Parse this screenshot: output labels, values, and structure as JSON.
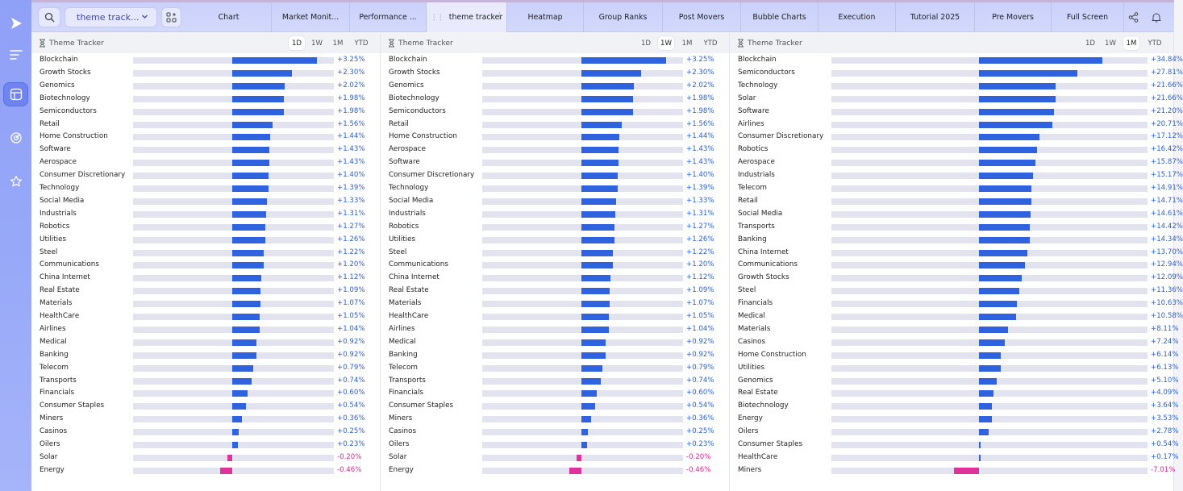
{
  "colors": {
    "positive": "#2f62df",
    "negative": "#e0329a",
    "positive_text": "#2b5fd9",
    "negative_text": "#d9288c"
  },
  "rail": {
    "items": [
      {
        "name": "logo-play-icon"
      },
      {
        "name": "menu-lines-icon"
      },
      {
        "name": "layout-panels-icon",
        "active": true
      },
      {
        "name": "target-icon"
      },
      {
        "name": "star-icon"
      }
    ]
  },
  "toolbar": {
    "select_value": "theme track...",
    "tabs": [
      "Chart",
      "Market Monit...",
      "Performance ...",
      "theme tracker",
      "Heatmap",
      "Group Ranks",
      "Post Movers",
      "Bubble Charts",
      "Execution",
      "Tutorial 2025",
      "Pre Movers",
      "Full Screen"
    ],
    "active_tab": 3
  },
  "panels": [
    {
      "title": "Theme Tracker",
      "ranges": [
        "1D",
        "1W",
        "1M",
        "YTD"
      ],
      "active_range": 0,
      "rows": [
        {
          "name": "Blockchain",
          "value": 3.25,
          "label": "+3.25%"
        },
        {
          "name": "Growth Stocks",
          "value": 2.3,
          "label": "+2.30%"
        },
        {
          "name": "Genomics",
          "value": 2.02,
          "label": "+2.02%"
        },
        {
          "name": "Biotechnology",
          "value": 1.98,
          "label": "+1.98%"
        },
        {
          "name": "Semiconductors",
          "value": 1.98,
          "label": "+1.98%"
        },
        {
          "name": "Retail",
          "value": 1.56,
          "label": "+1.56%"
        },
        {
          "name": "Home Construction",
          "value": 1.44,
          "label": "+1.44%"
        },
        {
          "name": "Software",
          "value": 1.43,
          "label": "+1.43%"
        },
        {
          "name": "Aerospace",
          "value": 1.43,
          "label": "+1.43%"
        },
        {
          "name": "Consumer Discretionary",
          "value": 1.4,
          "label": "+1.40%"
        },
        {
          "name": "Technology",
          "value": 1.39,
          "label": "+1.39%"
        },
        {
          "name": "Social Media",
          "value": 1.33,
          "label": "+1.33%"
        },
        {
          "name": "Industrials",
          "value": 1.31,
          "label": "+1.31%"
        },
        {
          "name": "Robotics",
          "value": 1.27,
          "label": "+1.27%"
        },
        {
          "name": "Utilities",
          "value": 1.26,
          "label": "+1.26%"
        },
        {
          "name": "Steel",
          "value": 1.22,
          "label": "+1.22%"
        },
        {
          "name": "Communications",
          "value": 1.2,
          "label": "+1.20%"
        },
        {
          "name": "China Internet",
          "value": 1.12,
          "label": "+1.12%"
        },
        {
          "name": "Real Estate",
          "value": 1.09,
          "label": "+1.09%"
        },
        {
          "name": "Materials",
          "value": 1.07,
          "label": "+1.07%"
        },
        {
          "name": "HealthCare",
          "value": 1.05,
          "label": "+1.05%"
        },
        {
          "name": "Airlines",
          "value": 1.04,
          "label": "+1.04%"
        },
        {
          "name": "Medical",
          "value": 0.92,
          "label": "+0.92%"
        },
        {
          "name": "Banking",
          "value": 0.92,
          "label": "+0.92%"
        },
        {
          "name": "Telecom",
          "value": 0.79,
          "label": "+0.79%"
        },
        {
          "name": "Transports",
          "value": 0.74,
          "label": "+0.74%"
        },
        {
          "name": "Financials",
          "value": 0.6,
          "label": "+0.60%"
        },
        {
          "name": "Consumer Staples",
          "value": 0.54,
          "label": "+0.54%"
        },
        {
          "name": "Miners",
          "value": 0.36,
          "label": "+0.36%"
        },
        {
          "name": "Casinos",
          "value": 0.25,
          "label": "+0.25%"
        },
        {
          "name": "Oilers",
          "value": 0.23,
          "label": "+0.23%"
        },
        {
          "name": "Solar",
          "value": -0.2,
          "label": "-0.20%"
        },
        {
          "name": "Energy",
          "value": -0.46,
          "label": "-0.46%"
        }
      ]
    },
    {
      "title": "Theme Tracker",
      "ranges": [
        "1D",
        "1W",
        "1M",
        "YTD"
      ],
      "active_range": 1,
      "rows": [
        {
          "name": "Blockchain",
          "value": 3.25,
          "label": "+3.25%"
        },
        {
          "name": "Growth Stocks",
          "value": 2.3,
          "label": "+2.30%"
        },
        {
          "name": "Genomics",
          "value": 2.02,
          "label": "+2.02%"
        },
        {
          "name": "Biotechnology",
          "value": 1.98,
          "label": "+1.98%"
        },
        {
          "name": "Semiconductors",
          "value": 1.98,
          "label": "+1.98%"
        },
        {
          "name": "Retail",
          "value": 1.56,
          "label": "+1.56%"
        },
        {
          "name": "Home Construction",
          "value": 1.44,
          "label": "+1.44%"
        },
        {
          "name": "Aerospace",
          "value": 1.43,
          "label": "+1.43%"
        },
        {
          "name": "Software",
          "value": 1.43,
          "label": "+1.43%"
        },
        {
          "name": "Consumer Discretionary",
          "value": 1.4,
          "label": "+1.40%"
        },
        {
          "name": "Technology",
          "value": 1.39,
          "label": "+1.39%"
        },
        {
          "name": "Social Media",
          "value": 1.33,
          "label": "+1.33%"
        },
        {
          "name": "Industrials",
          "value": 1.31,
          "label": "+1.31%"
        },
        {
          "name": "Robotics",
          "value": 1.27,
          "label": "+1.27%"
        },
        {
          "name": "Utilities",
          "value": 1.26,
          "label": "+1.26%"
        },
        {
          "name": "Steel",
          "value": 1.22,
          "label": "+1.22%"
        },
        {
          "name": "Communications",
          "value": 1.2,
          "label": "+1.20%"
        },
        {
          "name": "China Internet",
          "value": 1.12,
          "label": "+1.12%"
        },
        {
          "name": "Real Estate",
          "value": 1.09,
          "label": "+1.09%"
        },
        {
          "name": "Materials",
          "value": 1.07,
          "label": "+1.07%"
        },
        {
          "name": "HealthCare",
          "value": 1.05,
          "label": "+1.05%"
        },
        {
          "name": "Airlines",
          "value": 1.04,
          "label": "+1.04%"
        },
        {
          "name": "Medical",
          "value": 0.92,
          "label": "+0.92%"
        },
        {
          "name": "Banking",
          "value": 0.92,
          "label": "+0.92%"
        },
        {
          "name": "Telecom",
          "value": 0.79,
          "label": "+0.79%"
        },
        {
          "name": "Transports",
          "value": 0.74,
          "label": "+0.74%"
        },
        {
          "name": "Financials",
          "value": 0.6,
          "label": "+0.60%"
        },
        {
          "name": "Consumer Staples",
          "value": 0.54,
          "label": "+0.54%"
        },
        {
          "name": "Miners",
          "value": 0.36,
          "label": "+0.36%"
        },
        {
          "name": "Casinos",
          "value": 0.25,
          "label": "+0.25%"
        },
        {
          "name": "Oilers",
          "value": 0.23,
          "label": "+0.23%"
        },
        {
          "name": "Solar",
          "value": -0.2,
          "label": "-0.20%"
        },
        {
          "name": "Energy",
          "value": -0.46,
          "label": "-0.46%"
        }
      ]
    },
    {
      "title": "Theme Tracker",
      "ranges": [
        "1D",
        "1W",
        "1M",
        "YTD"
      ],
      "active_range": 2,
      "rows": [
        {
          "name": "Blockchain",
          "value": 34.84,
          "label": "+34.84%"
        },
        {
          "name": "Semiconductors",
          "value": 27.81,
          "label": "+27.81%"
        },
        {
          "name": "Technology",
          "value": 21.66,
          "label": "+21.66%"
        },
        {
          "name": "Solar",
          "value": 21.66,
          "label": "+21.66%"
        },
        {
          "name": "Software",
          "value": 21.2,
          "label": "+21.20%"
        },
        {
          "name": "Airlines",
          "value": 20.71,
          "label": "+20.71%"
        },
        {
          "name": "Consumer Discretionary",
          "value": 17.12,
          "label": "+17.12%"
        },
        {
          "name": "Robotics",
          "value": 16.42,
          "label": "+16.42%"
        },
        {
          "name": "Aerospace",
          "value": 15.87,
          "label": "+15.87%"
        },
        {
          "name": "Industrials",
          "value": 15.17,
          "label": "+15.17%"
        },
        {
          "name": "Telecom",
          "value": 14.91,
          "label": "+14.91%"
        },
        {
          "name": "Retail",
          "value": 14.71,
          "label": "+14.71%"
        },
        {
          "name": "Social Media",
          "value": 14.61,
          "label": "+14.61%"
        },
        {
          "name": "Transports",
          "value": 14.42,
          "label": "+14.42%"
        },
        {
          "name": "Banking",
          "value": 14.34,
          "label": "+14.34%"
        },
        {
          "name": "China Internet",
          "value": 13.7,
          "label": "+13.70%"
        },
        {
          "name": "Communications",
          "value": 12.94,
          "label": "+12.94%"
        },
        {
          "name": "Growth Stocks",
          "value": 12.09,
          "label": "+12.09%"
        },
        {
          "name": "Steel",
          "value": 11.36,
          "label": "+11.36%"
        },
        {
          "name": "Financials",
          "value": 10.63,
          "label": "+10.63%"
        },
        {
          "name": "Medical",
          "value": 10.58,
          "label": "+10.58%"
        },
        {
          "name": "Materials",
          "value": 8.11,
          "label": "+8.11%"
        },
        {
          "name": "Casinos",
          "value": 7.24,
          "label": "+7.24%"
        },
        {
          "name": "Home Construction",
          "value": 6.14,
          "label": "+6.14%"
        },
        {
          "name": "Utilities",
          "value": 6.13,
          "label": "+6.13%"
        },
        {
          "name": "Genomics",
          "value": 5.1,
          "label": "+5.10%"
        },
        {
          "name": "Real Estate",
          "value": 4.09,
          "label": "+4.09%"
        },
        {
          "name": "Biotechnology",
          "value": 3.64,
          "label": "+3.64%"
        },
        {
          "name": "Energy",
          "value": 3.53,
          "label": "+3.53%"
        },
        {
          "name": "Oilers",
          "value": 2.78,
          "label": "+2.78%"
        },
        {
          "name": "Consumer Staples",
          "value": 0.54,
          "label": "+0.54%"
        },
        {
          "name": "HealthCare",
          "value": 0.17,
          "label": "+0.17%"
        },
        {
          "name": "Miners",
          "value": -7.01,
          "label": "-7.01%"
        }
      ]
    }
  ]
}
